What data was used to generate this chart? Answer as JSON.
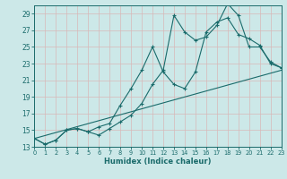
{
  "xlabel": "Humidex (Indice chaleur)",
  "bg_color": "#cce8e8",
  "grid_color": "#b8d8d8",
  "line_color": "#1a6b6b",
  "xlim": [
    0,
    23
  ],
  "ylim": [
    13,
    30
  ],
  "xtick_vals": [
    0,
    1,
    2,
    3,
    4,
    5,
    6,
    7,
    8,
    9,
    10,
    11,
    12,
    13,
    14,
    15,
    16,
    17,
    18,
    19,
    20,
    21,
    22,
    23
  ],
  "ytick_vals": [
    13,
    15,
    17,
    19,
    21,
    23,
    25,
    27,
    29
  ],
  "line1_x": [
    0,
    1,
    2,
    3,
    4,
    5,
    6,
    7,
    8,
    9,
    10,
    11,
    12,
    13,
    14,
    15,
    16,
    17,
    18,
    19,
    20,
    21,
    22,
    23
  ],
  "line1_y": [
    14.0,
    13.3,
    13.8,
    15.0,
    15.2,
    14.8,
    14.4,
    15.2,
    16.0,
    16.8,
    18.2,
    20.5,
    22.2,
    28.8,
    26.8,
    25.8,
    26.2,
    27.6,
    30.2,
    28.8,
    25.0,
    25.0,
    23.2,
    22.5
  ],
  "line2_x": [
    0,
    1,
    2,
    3,
    4,
    5,
    6,
    7,
    8,
    9,
    10,
    11,
    12,
    13,
    14,
    15,
    16,
    17,
    18,
    19,
    20,
    21,
    22,
    23
  ],
  "line2_y": [
    14.0,
    13.3,
    13.8,
    15.0,
    15.2,
    14.8,
    15.4,
    15.8,
    18.0,
    20.0,
    22.2,
    25.0,
    22.0,
    20.5,
    20.0,
    22.0,
    26.8,
    28.0,
    28.5,
    26.5,
    26.0,
    25.2,
    23.0,
    22.5
  ],
  "line3_x": [
    0,
    23
  ],
  "line3_y": [
    14.0,
    22.2
  ]
}
